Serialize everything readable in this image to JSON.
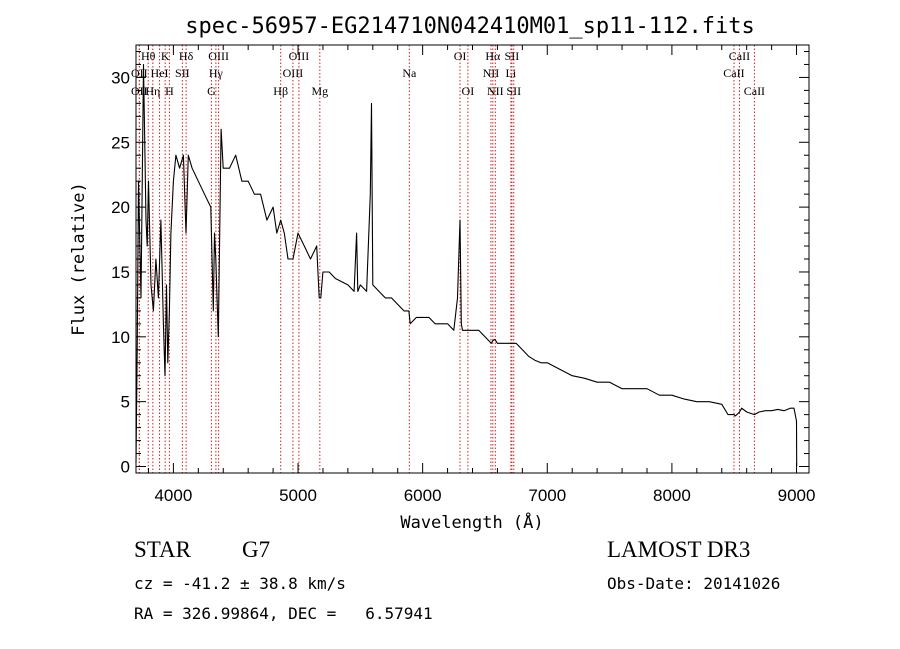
{
  "chart_data": {
    "type": "line",
    "title": "spec-56957-EG214710N042410M01_sp11-112.fits",
    "xlabel": "Wavelength (Å)",
    "ylabel": "Flux (relative)",
    "xlim": [
      3700,
      9100
    ],
    "ylim": [
      -0.5,
      32.5
    ],
    "xticks": [
      4000,
      5000,
      6000,
      7000,
      8000,
      9000
    ],
    "yticks": [
      0,
      5,
      10,
      15,
      20,
      25,
      30
    ],
    "series": [
      {
        "name": "spectrum",
        "x": [
          3700,
          3710,
          3720,
          3740,
          3760,
          3780,
          3790,
          3800,
          3820,
          3840,
          3860,
          3880,
          3900,
          3920,
          3933,
          3945,
          3955,
          3968,
          3980,
          4000,
          4020,
          4050,
          4080,
          4101,
          4120,
          4150,
          4200,
          4250,
          4300,
          4320,
          4330,
          4340,
          4360,
          4383,
          4400,
          4450,
          4500,
          4550,
          4600,
          4650,
          4700,
          4750,
          4800,
          4830,
          4861,
          4890,
          4920,
          4960,
          5000,
          5050,
          5100,
          5150,
          5170,
          5183,
          5200,
          5250,
          5300,
          5400,
          5450,
          5470,
          5480,
          5500,
          5550,
          5580,
          5590,
          5600,
          5650,
          5700,
          5750,
          5800,
          5850,
          5890,
          5900,
          5950,
          6000,
          6050,
          6100,
          6150,
          6200,
          6250,
          6280,
          6300,
          6310,
          6320,
          6340,
          6400,
          6450,
          6500,
          6550,
          6563,
          6580,
          6600,
          6650,
          6700,
          6750,
          6800,
          6850,
          6900,
          6950,
          7000,
          7100,
          7200,
          7300,
          7400,
          7500,
          7600,
          7700,
          7800,
          7900,
          8000,
          8100,
          8200,
          8300,
          8400,
          8450,
          8498,
          8510,
          8542,
          8560,
          8600,
          8662,
          8700,
          8750,
          8800,
          8850,
          8900,
          8950,
          8980,
          9000,
          9001
        ],
        "values": [
          0.3,
          9,
          22,
          13,
          31,
          19,
          17,
          22,
          14,
          12,
          16,
          13,
          19,
          11,
          7,
          14,
          8,
          12,
          18,
          22,
          24,
          23,
          24,
          18,
          24,
          23,
          22,
          21,
          20,
          12,
          18,
          16,
          10,
          26,
          23,
          23,
          24,
          22,
          22,
          21,
          21,
          19,
          20,
          18,
          19,
          18,
          16,
          16,
          18,
          17,
          16,
          17,
          13,
          13,
          15,
          15,
          14.5,
          14,
          13.5,
          18,
          13.5,
          14,
          13.5,
          21,
          28,
          14,
          13.5,
          13,
          13,
          12.5,
          12,
          12,
          11,
          11.5,
          11.5,
          11.5,
          11,
          11,
          11,
          10.5,
          13,
          19,
          11,
          10.5,
          10.5,
          10.5,
          10.5,
          10,
          9.5,
          9.7,
          9.8,
          9.5,
          9.5,
          9.5,
          9.5,
          9,
          8.5,
          8.2,
          8,
          8,
          7.5,
          7,
          6.8,
          6.5,
          6.5,
          6,
          6,
          6,
          5.5,
          5.5,
          5.2,
          5,
          5,
          4.8,
          4,
          4,
          3.9,
          4.2,
          4.5,
          4.2,
          4.0,
          4.2,
          4.3,
          4.3,
          4.4,
          4.3,
          4.5,
          4.5,
          3.5,
          0
        ]
      }
    ],
    "lines": [
      {
        "name": "OII",
        "wl": 3727,
        "row": 2
      },
      {
        "name": "Hθ",
        "wl": 3798,
        "row": 0
      },
      {
        "name": "OII",
        "wl": 3727,
        "row": 1
      },
      {
        "name": "Hη",
        "wl": 3835,
        "row": 2
      },
      {
        "name": "HeI",
        "wl": 3889,
        "row": 1
      },
      {
        "name": "K",
        "wl": 3934,
        "row": 0
      },
      {
        "name": "H",
        "wl": 3968,
        "row": 2
      },
      {
        "name": "SII",
        "wl": 4072,
        "row": 1
      },
      {
        "name": "Hδ",
        "wl": 4102,
        "row": 0
      },
      {
        "name": "G",
        "wl": 4305,
        "row": 2
      },
      {
        "name": "Hγ",
        "wl": 4341,
        "row": 1
      },
      {
        "name": "OIII",
        "wl": 4363,
        "row": 0
      },
      {
        "name": "Hβ",
        "wl": 4861,
        "row": 2
      },
      {
        "name": "OIII",
        "wl": 4959,
        "row": 1
      },
      {
        "name": "OIII",
        "wl": 5007,
        "row": 0
      },
      {
        "name": "Mg",
        "wl": 5175,
        "row": 2
      },
      {
        "name": "Na",
        "wl": 5893,
        "row": 1
      },
      {
        "name": "OI",
        "wl": 6300,
        "row": 0
      },
      {
        "name": "OI",
        "wl": 6363,
        "row": 2
      },
      {
        "name": "NII",
        "wl": 6548,
        "row": 1
      },
      {
        "name": "Hα",
        "wl": 6563,
        "row": 0
      },
      {
        "name": "NII",
        "wl": 6583,
        "row": 2
      },
      {
        "name": "SII",
        "wl": 6716,
        "row": 0
      },
      {
        "name": "Li",
        "wl": 6708,
        "row": 1
      },
      {
        "name": "SII",
        "wl": 6731,
        "row": 2
      },
      {
        "name": "CaII",
        "wl": 8498,
        "row": 1
      },
      {
        "name": "CaII",
        "wl": 8542,
        "row": 0
      },
      {
        "name": "CaII",
        "wl": 8662,
        "row": 2
      }
    ],
    "line_color": "#d42020"
  },
  "info": {
    "object_class": "STAR",
    "subclass": "G7",
    "survey": "LAMOST DR3",
    "velocity": "cz = -41.2 ± 38.8 km/s",
    "obs_date": "Obs-Date: 20141026",
    "coords": "RA = 326.99864, DEC =   6.57941"
  }
}
